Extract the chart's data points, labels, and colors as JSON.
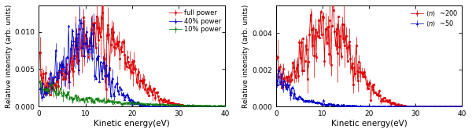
{
  "xlabel": "Kinetic energy(eV)",
  "ylabel_left": "Relative intensity (arb. units)",
  "ylabel_right": "Relative intensity (arb. units)",
  "xlim": [
    0,
    40
  ],
  "left_ylim": [
    0,
    0.0135
  ],
  "right_ylim": [
    0,
    0.0055
  ],
  "left_yticks": [
    0.0,
    0.005,
    0.01
  ],
  "right_yticks": [
    0.0,
    0.002,
    0.004
  ],
  "left_xticks": [
    0,
    10,
    20,
    30,
    40
  ],
  "right_xticks": [
    0,
    10,
    20,
    30,
    40
  ],
  "left_legend": [
    "full power",
    "40% power",
    "10% power"
  ],
  "right_legend": [
    "<n>  ~200",
    "<n>  ~50"
  ],
  "left_colors": [
    "#dd0000",
    "#0000cc",
    "#007700"
  ],
  "right_colors": [
    "#dd0000",
    "#0000cc"
  ],
  "seed": 12345,
  "figwidth": 6.0,
  "figheight": 1.7,
  "dpi": 100
}
